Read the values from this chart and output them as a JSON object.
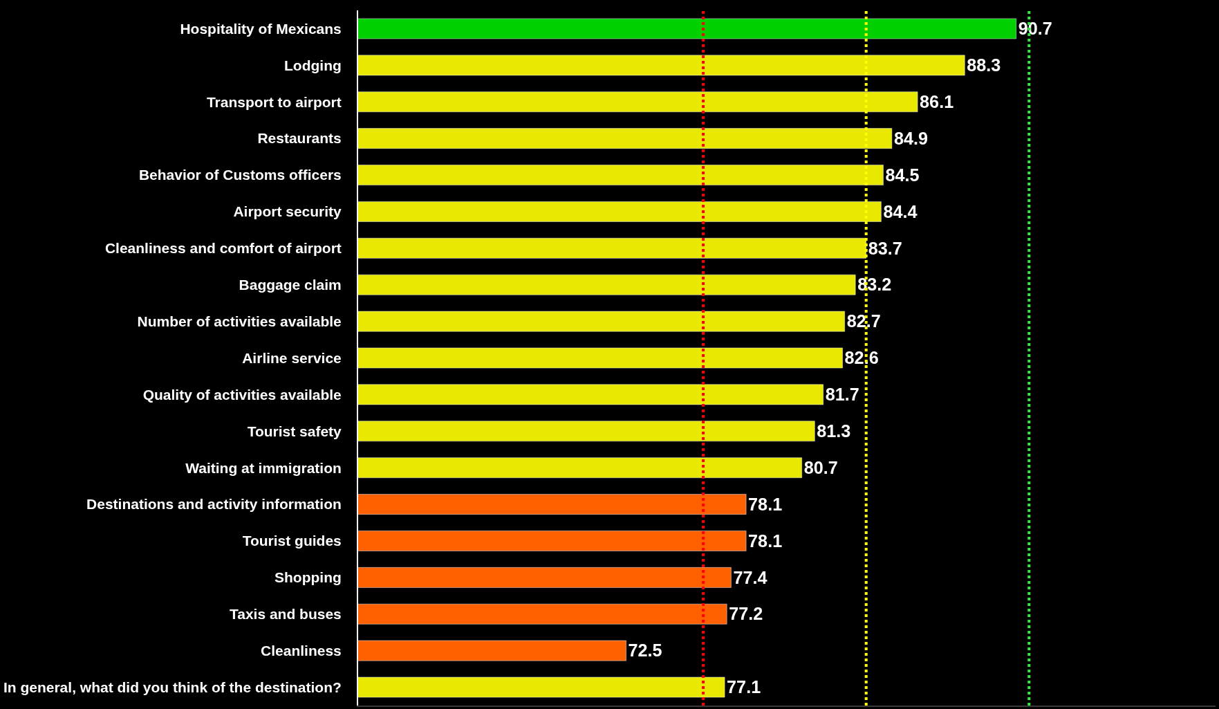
{
  "chart_data": {
    "type": "bar",
    "orientation": "horizontal",
    "categories": [
      "Hospitality of Mexicans",
      "Lodging",
      "Transport to airport",
      "Restaurants",
      "Behavior of Customs officers",
      "Airport security",
      "Cleanliness and comfort of airport",
      "Baggage claim",
      "Number of activities available",
      "Airline service",
      "Quality of activities available",
      "Tourist safety",
      "Waiting at immigration",
      "Destinations and activity information",
      "Tourist guides",
      "Shopping",
      "Taxis and buses",
      "Cleanliness",
      "In general, what did you think of the destination?"
    ],
    "values": [
      90.7,
      88.3,
      86.1,
      84.9,
      84.5,
      84.4,
      83.7,
      83.2,
      82.7,
      82.6,
      81.7,
      81.3,
      80.7,
      78.1,
      78.1,
      77.4,
      77.2,
      72.5,
      77.1
    ],
    "colors": [
      "#00d000",
      "#e8e800",
      "#e8e800",
      "#e8e800",
      "#e8e800",
      "#e8e800",
      "#e8e800",
      "#e8e800",
      "#e8e800",
      "#e8e800",
      "#e8e800",
      "#e8e800",
      "#e8e800",
      "#ff6000",
      "#ff6000",
      "#ff6000",
      "#ff6000",
      "#ff6000",
      "#e8e800"
    ],
    "data_labels": true,
    "xlim": [
      60,
      100
    ],
    "ref_lines": [
      {
        "axis": "x",
        "value": 76.1,
        "color": "#ff0000",
        "line_style": "dotted"
      },
      {
        "axis": "x",
        "value": 83.7,
        "color": "#ffff00",
        "line_style": "dotted"
      },
      {
        "axis": "x",
        "value": 91.3,
        "color": "#33ee33",
        "line_style": "dotted"
      }
    ],
    "grid": false,
    "legend": false
  }
}
